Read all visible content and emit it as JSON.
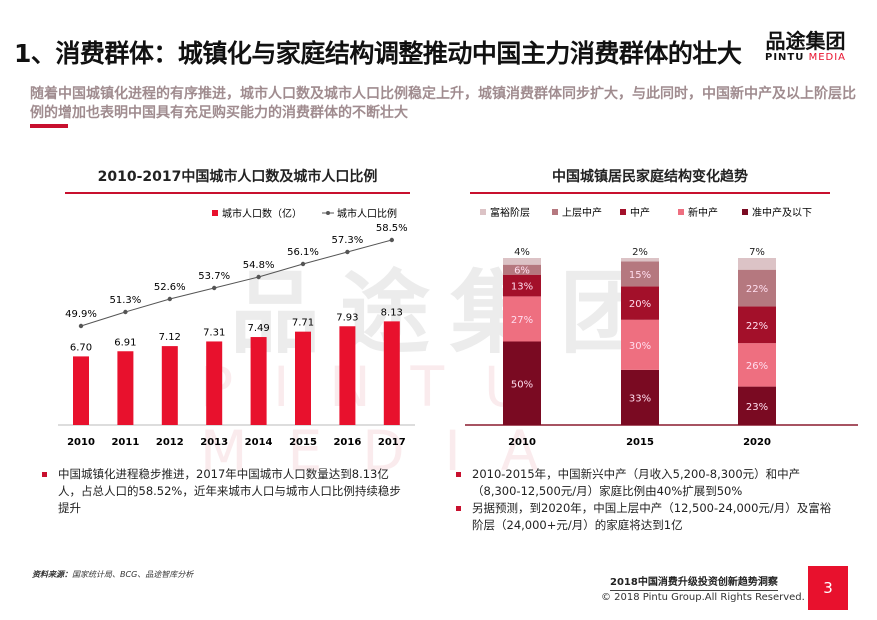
{
  "header": {
    "title": "1、消费群体：城镇化与家庭结构调整推动中国主力消费群体的壮大",
    "subtitle": "随着中国城镇化进程的有序推进，城市人口数及城市人口比例稳定上升，城镇消费群体同步扩大，与此同时，中国新中产及以上阶层比例的增加也表明中国具有充足购买能力的消费群体的不断壮大"
  },
  "logo": {
    "cn": "品途集团",
    "en1": "PINTU",
    "en2": "MEDIA"
  },
  "watermark": {
    "cn": "品途集团",
    "en": "PINTU MEDIA"
  },
  "chart_data": [
    {
      "type": "bar+line",
      "title": "2010-2017中国城市人口数及城市人口比例",
      "categories": [
        "2010",
        "2011",
        "2012",
        "2013",
        "2014",
        "2015",
        "2016",
        "2017"
      ],
      "series": [
        {
          "name": "城市人口数（亿）",
          "type": "bar",
          "color": "#e8112d",
          "values": [
            6.7,
            6.91,
            7.12,
            7.31,
            7.49,
            7.71,
            7.93,
            8.13
          ],
          "labels": [
            "6.70",
            "6.91",
            "7.12",
            "7.31",
            "7.49",
            "7.71",
            "7.93",
            "8.13"
          ]
        },
        {
          "name": "城市人口比例",
          "type": "line",
          "color": "#555555",
          "values": [
            49.9,
            51.3,
            52.6,
            53.7,
            54.8,
            56.1,
            57.3,
            58.5
          ],
          "labels": [
            "49.9%",
            "51.3%",
            "52.6%",
            "53.7%",
            "54.8%",
            "56.1%",
            "57.3%",
            "58.5%"
          ]
        }
      ],
      "legend": "top-right",
      "grid": false
    },
    {
      "type": "stacked-bar",
      "title": "中国城镇居民家庭结构变化趋势",
      "categories": [
        "2010",
        "2015",
        "2020"
      ],
      "series": [
        {
          "name": "准中产及以下",
          "color": "#7a0a22",
          "values": [
            50,
            33,
            23
          ]
        },
        {
          "name": "新中产",
          "color": "#ee6f80",
          "values": [
            27,
            30,
            26
          ]
        },
        {
          "name": "中产",
          "color": "#a3102a",
          "values": [
            13,
            20,
            22
          ]
        },
        {
          "name": "上层中产",
          "color": "#b5787f",
          "values": [
            6,
            15,
            22
          ]
        },
        {
          "name": "富裕阶层",
          "color": "#dcc3c6",
          "values": [
            4,
            2,
            7
          ]
        }
      ],
      "legend_order": [
        "富裕阶层",
        "上层中产",
        "中产",
        "新中产",
        "准中产及以下"
      ],
      "legend": "top",
      "unit": "%",
      "grid": false
    }
  ],
  "notes_left": [
    "中国城镇化进程稳步推进，2017年中国城市人口数量达到8.13亿人，占总人口的58.52%，近年来城市人口与城市人口比例持续稳步提升"
  ],
  "notes_right": [
    "2010-2015年，中国新兴中产（月收入5,200-8,300元）和中产（8,300-12,500元/月）家庭比例由40%扩展到50%",
    "另据预测，到2020年，中国上层中产（12,500-24,000元/月）及富裕阶层（24,000+元/月）的家庭将达到1亿"
  ],
  "footer": {
    "source_label": "资料来源：",
    "source": "国家统计局、BCG、品途智库分析",
    "report": "2018中国消费升级投资创新趋势洞察",
    "copyright": "© 2018 Pintu Group.All Rights Reserved.",
    "page": "3"
  }
}
